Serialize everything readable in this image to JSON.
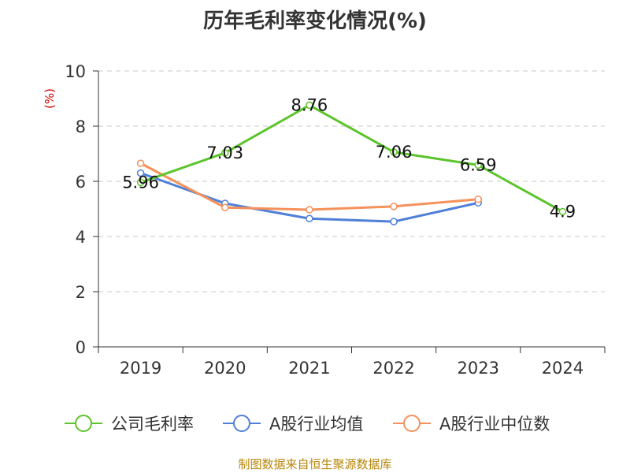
{
  "chart_data": {
    "type": "line",
    "title": "历年毛利率变化情况(%)",
    "ylabel": "(%)",
    "xlabel": "",
    "categories": [
      "2019",
      "2020",
      "2021",
      "2022",
      "2023",
      "2024"
    ],
    "ylim": [
      0,
      10
    ],
    "yticks": [
      0,
      2,
      4,
      6,
      8,
      10
    ],
    "grid": true,
    "legend_position": "bottom",
    "series": [
      {
        "name": "公司毛利率",
        "color": "#5cc42b",
        "values": [
          5.96,
          7.03,
          8.76,
          7.06,
          6.59,
          4.9
        ],
        "labels": [
          "5.96",
          "7.03",
          "8.76",
          "7.06",
          "6.59",
          "4.9"
        ]
      },
      {
        "name": "A股行业均值",
        "color": "#4f7fd8",
        "values": [
          6.3,
          5.2,
          4.65,
          4.54,
          5.22,
          null
        ]
      },
      {
        "name": "A股行业中位数",
        "color": "#f5915a",
        "values": [
          6.65,
          5.05,
          4.97,
          5.09,
          5.35,
          null
        ]
      }
    ]
  },
  "source": "制图数据来自恒生聚源数据库"
}
